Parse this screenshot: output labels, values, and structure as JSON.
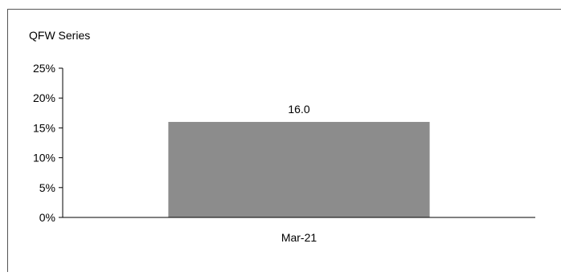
{
  "chart_data": {
    "type": "bar",
    "title": "QFW Series",
    "xlabel": "",
    "ylabel": "",
    "categories": [
      "Mar-21"
    ],
    "values": [
      16.0
    ],
    "data_labels": [
      "16.0"
    ],
    "ylim": [
      0,
      25
    ],
    "yticks": [
      0,
      5,
      10,
      15,
      20,
      25
    ],
    "ytick_labels": [
      "0%",
      "5%",
      "10%",
      "15%",
      "20%",
      "25%"
    ],
    "grid": false,
    "legend": "none",
    "bar_color": "#8c8c8c",
    "axis_color": "#000000",
    "frame_color": "#555555"
  }
}
